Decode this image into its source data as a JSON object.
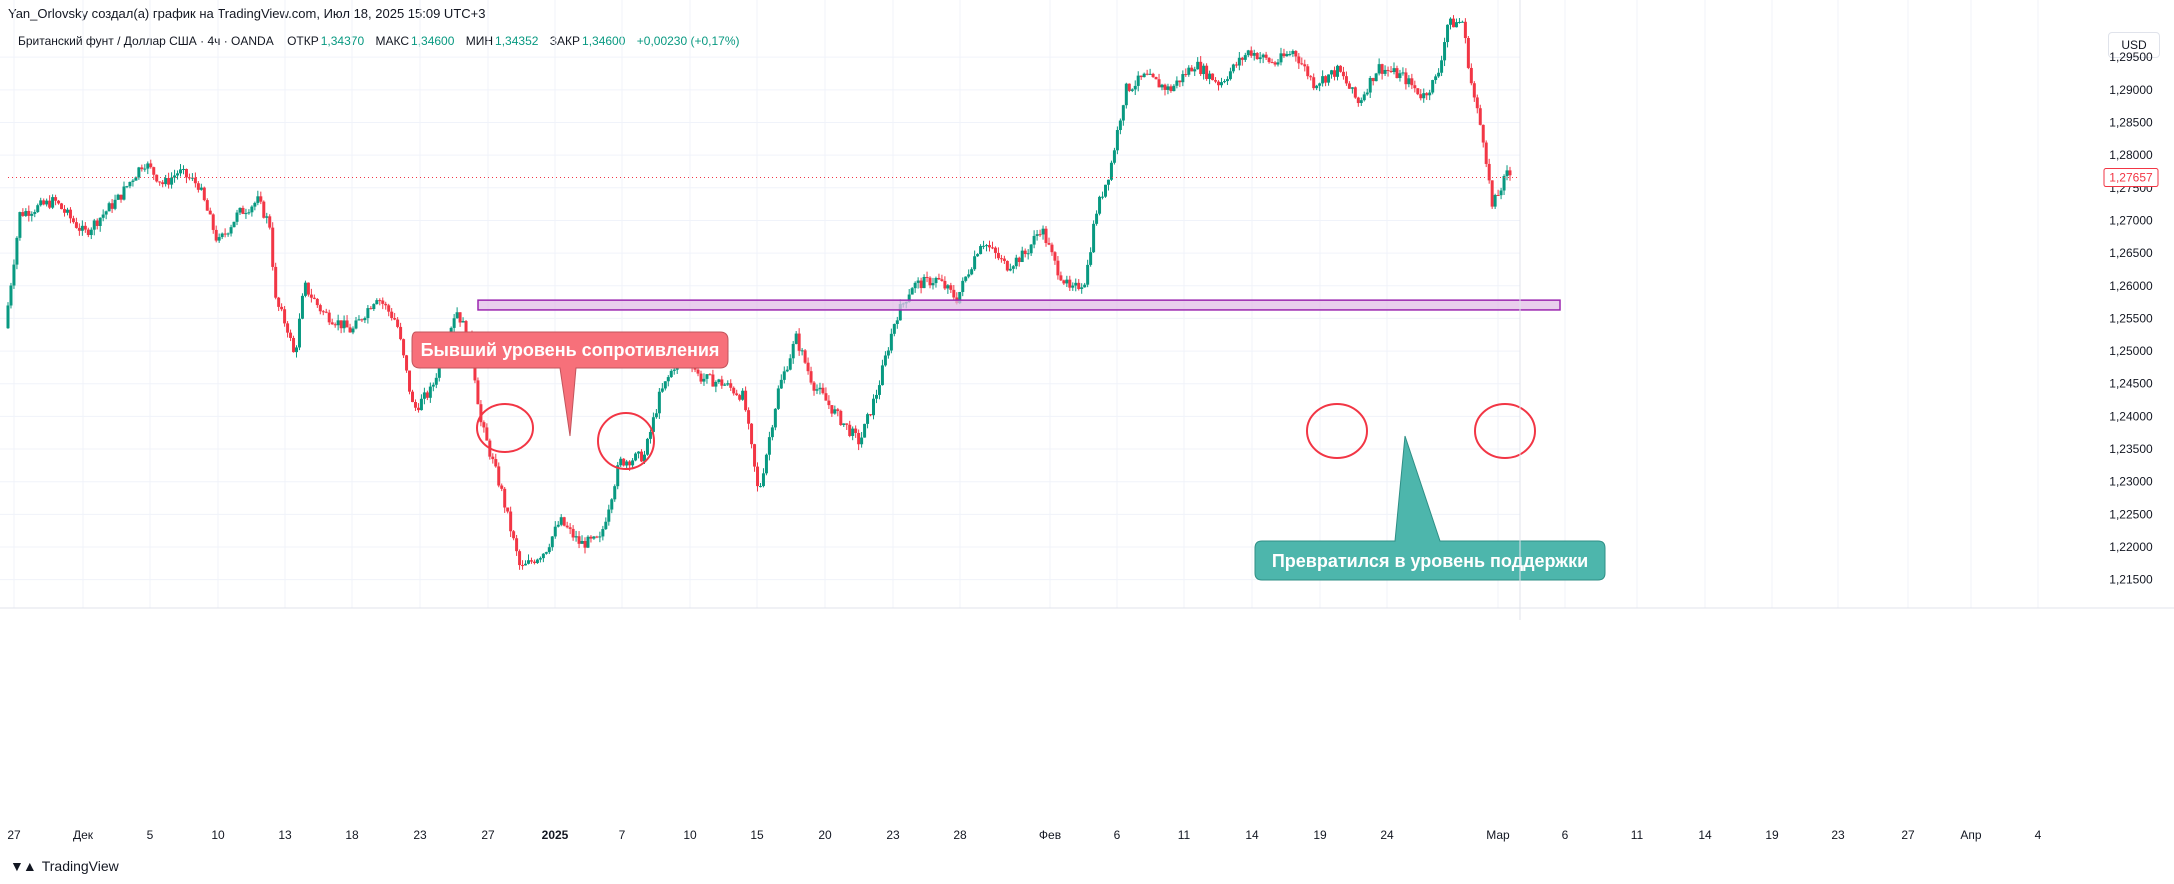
{
  "header": {
    "attribution": "Yan_Orlovsky создал(а) график на TradingView.com, Июл 18, 2025 15:09 UTC+3"
  },
  "legend": {
    "symbol": "Британский фунт / Доллар США · 4ч · OANDA",
    "open_label": "ОТКР",
    "open_value": "1,34370",
    "high_label": "МАКС",
    "high_value": "1,34600",
    "low_label": "МИН",
    "low_value": "1,34352",
    "close_label": "ЗАКР",
    "close_value": "1,34600",
    "change": "+0,00230 (+0,17%)"
  },
  "currency_button": "USD",
  "brand": {
    "name": "TradingView",
    "logo_icon": "tradingview-logo-icon"
  },
  "colors": {
    "up": "#089981",
    "down": "#f23645",
    "zone_fill": "#e1bee7",
    "zone_border": "#9c27b0",
    "resistance_callout": "#f7707a",
    "support_callout": "#4db6ac",
    "circle": "#f23645"
  },
  "chart_data": {
    "type": "candlestick",
    "ylim": [
      1.2125,
      1.301
    ],
    "y_ticks": [
      "1,21500",
      "1,22000",
      "1,22500",
      "1,23000",
      "1,23500",
      "1,24000",
      "1,24500",
      "1,25000",
      "1,25500",
      "1,26000",
      "1,26500",
      "1,27000",
      "1,27500",
      "1,28000",
      "1,28500",
      "1,29000",
      "1,29500"
    ],
    "x_ticks": [
      "27",
      "Дек",
      "5",
      "10",
      "13",
      "18",
      "23",
      "27",
      "2025",
      "7",
      "10",
      "15",
      "20",
      "23",
      "28",
      "Фев",
      "6",
      "11",
      "14",
      "19",
      "24",
      "Мар",
      "6",
      "11",
      "14",
      "19",
      "23",
      "27",
      "Апр",
      "4"
    ],
    "current_price_label": "1,27657",
    "current_price": 1.27657,
    "path_anchors": [
      [
        0,
        1.2535
      ],
      [
        15,
        1.271
      ],
      [
        50,
        1.273
      ],
      [
        80,
        1.268
      ],
      [
        115,
        1.2735
      ],
      [
        140,
        1.279
      ],
      [
        160,
        1.2755
      ],
      [
        175,
        1.2775
      ],
      [
        195,
        1.2755
      ],
      [
        215,
        1.2665
      ],
      [
        235,
        1.271
      ],
      [
        255,
        1.273
      ],
      [
        268,
        1.269
      ],
      [
        272,
        1.258
      ],
      [
        285,
        1.2535
      ],
      [
        292,
        1.249
      ],
      [
        302,
        1.26
      ],
      [
        320,
        1.256
      ],
      [
        350,
        1.253
      ],
      [
        375,
        1.2585
      ],
      [
        395,
        1.2545
      ],
      [
        412,
        1.241
      ],
      [
        430,
        1.244
      ],
      [
        455,
        1.2565
      ],
      [
        470,
        1.251
      ],
      [
        480,
        1.239
      ],
      [
        500,
        1.229
      ],
      [
        520,
        1.2165
      ],
      [
        545,
        1.2195
      ],
      [
        560,
        1.224
      ],
      [
        580,
        1.2205
      ],
      [
        600,
        1.221
      ],
      [
        620,
        1.233
      ],
      [
        645,
        1.234
      ],
      [
        660,
        1.243
      ],
      [
        685,
        1.251
      ],
      [
        700,
        1.246
      ],
      [
        725,
        1.245
      ],
      [
        745,
        1.243
      ],
      [
        760,
        1.228
      ],
      [
        780,
        1.244
      ],
      [
        798,
        1.252
      ],
      [
        815,
        1.245
      ],
      [
        840,
        1.24
      ],
      [
        862,
        1.236
      ],
      [
        880,
        1.244
      ],
      [
        898,
        1.255
      ],
      [
        915,
        1.26
      ],
      [
        940,
        1.261
      ],
      [
        960,
        1.258
      ],
      [
        985,
        1.267
      ],
      [
        1010,
        1.263
      ],
      [
        1030,
        1.265
      ],
      [
        1045,
        1.269
      ],
      [
        1060,
        1.263
      ],
      [
        1075,
        1.259
      ],
      [
        1090,
        1.261
      ],
      [
        1100,
        1.271
      ],
      [
        1115,
        1.278
      ],
      [
        1130,
        1.29
      ],
      [
        1150,
        1.292
      ],
      [
        1175,
        1.29
      ],
      [
        1200,
        1.294
      ],
      [
        1225,
        1.291
      ],
      [
        1255,
        1.296
      ],
      [
        1280,
        1.294
      ],
      [
        1300,
        1.296
      ],
      [
        1320,
        1.291
      ],
      [
        1345,
        1.293
      ],
      [
        1365,
        1.288
      ],
      [
        1385,
        1.2935
      ],
      [
        1410,
        1.292
      ],
      [
        1430,
        1.289
      ],
      [
        1445,
        1.292
      ],
      [
        1455,
        1.3
      ],
      [
        1470,
        1.3005
      ],
      [
        1480,
        1.29
      ],
      [
        1492,
        1.282
      ],
      [
        1500,
        1.272
      ],
      [
        1515,
        1.277
      ]
    ],
    "zone": {
      "y_low": 1.2563,
      "y_high": 1.2578,
      "x_start": 1.2563,
      "label_start": "27",
      "label_end": "6"
    },
    "annotations": [
      {
        "text": "Бывший уровень сопротивления",
        "kind": "resistance"
      },
      {
        "text": "Превратился в уровень поддержки",
        "kind": "support"
      }
    ]
  }
}
